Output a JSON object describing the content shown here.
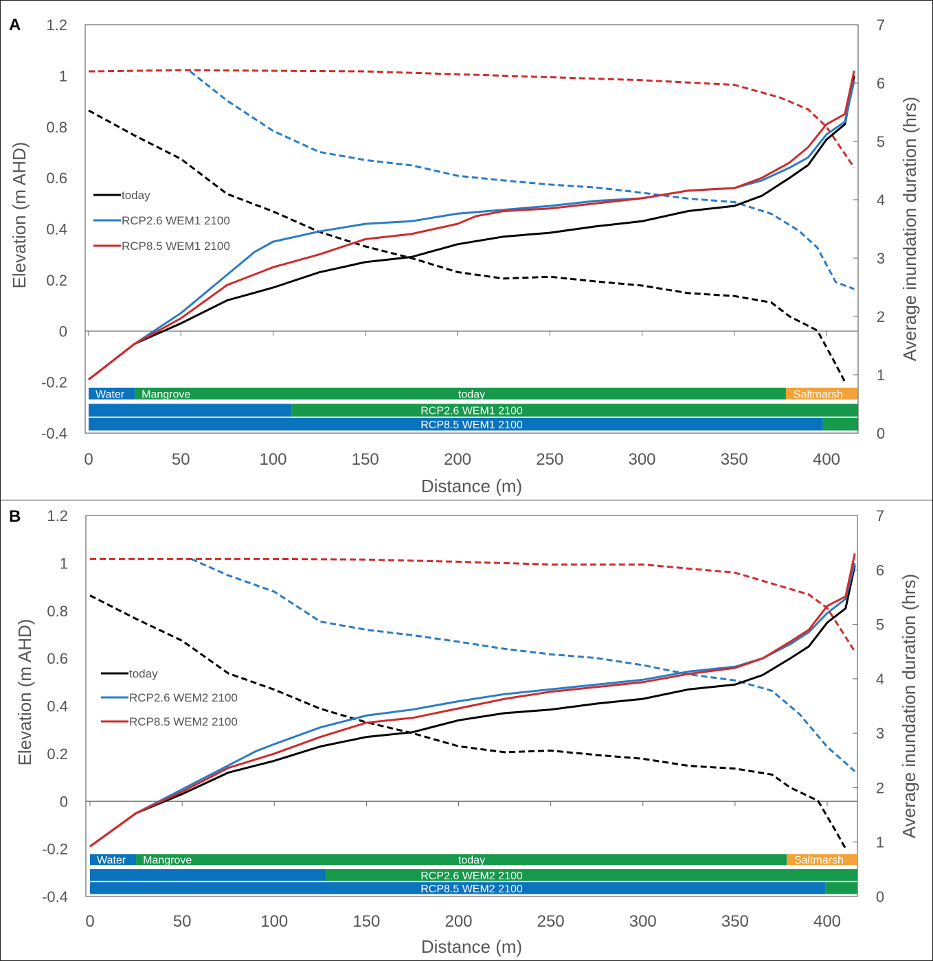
{
  "chart_data": [
    {
      "panel_label": "A",
      "type": "line",
      "xlabel": "Distance (m)",
      "ylabel": "Elevation (m AHD)",
      "y2label": "Average inundation duration (hrs)",
      "xlim": [
        0,
        417
      ],
      "ylim": [
        -0.4,
        1.2
      ],
      "y2lim": [
        0,
        7
      ],
      "xticks": [
        "0",
        "50",
        "100",
        "150",
        "200",
        "250",
        "300",
        "350",
        "400"
      ],
      "yticks": [
        "-0.4",
        "-0.2",
        "0",
        "0.2",
        "0.4",
        "0.6",
        "0.8",
        "1",
        "1.2"
      ],
      "y2ticks": [
        "0",
        "1",
        "2",
        "3",
        "4",
        "5",
        "6",
        "7"
      ],
      "legend": [
        "today",
        "RCP2.6 WEM1 2100",
        "RCP8.5 WEM1 2100"
      ],
      "legend_position": "left-middle",
      "colors": {
        "today": "#000000",
        "rcp26": "#2a7cc7",
        "rcp85": "#d12b2b",
        "water": "#0b72be",
        "mangrove": "#16994a",
        "saltmarsh": "#f4a238"
      },
      "elevation": [
        {
          "name": "today",
          "x": [
            0,
            25,
            50,
            75,
            100,
            125,
            150,
            175,
            200,
            225,
            250,
            275,
            300,
            325,
            350,
            365,
            380,
            390,
            400,
            410,
            415
          ],
          "y": [
            -0.19,
            -0.05,
            0.03,
            0.12,
            0.17,
            0.23,
            0.27,
            0.29,
            0.34,
            0.37,
            0.385,
            0.41,
            0.43,
            0.47,
            0.49,
            0.53,
            0.6,
            0.65,
            0.75,
            0.81,
            1.0
          ]
        },
        {
          "name": "RCP2.6 WEM1 2100",
          "x": [
            0,
            25,
            50,
            75,
            90,
            100,
            125,
            150,
            175,
            200,
            225,
            250,
            275,
            300,
            325,
            350,
            365,
            380,
            390,
            400,
            410,
            415
          ],
          "y": [
            -0.19,
            -0.05,
            0.07,
            0.22,
            0.31,
            0.35,
            0.39,
            0.42,
            0.43,
            0.46,
            0.475,
            0.49,
            0.51,
            0.52,
            0.55,
            0.56,
            0.59,
            0.64,
            0.68,
            0.77,
            0.82,
            0.98
          ]
        },
        {
          "name": "RCP8.5 WEM1 2100",
          "x": [
            0,
            25,
            50,
            75,
            100,
            125,
            150,
            175,
            200,
            210,
            225,
            250,
            275,
            300,
            325,
            350,
            365,
            380,
            390,
            400,
            410,
            415
          ],
          "y": [
            -0.19,
            -0.05,
            0.05,
            0.18,
            0.25,
            0.3,
            0.36,
            0.38,
            0.42,
            0.45,
            0.47,
            0.48,
            0.5,
            0.52,
            0.55,
            0.56,
            0.6,
            0.66,
            0.72,
            0.81,
            0.85,
            1.02
          ]
        }
      ],
      "inundation_hrs": [
        {
          "name": "today",
          "x": [
            0,
            25,
            50,
            75,
            100,
            125,
            150,
            175,
            200,
            225,
            250,
            275,
            300,
            325,
            350,
            370,
            380,
            395,
            405,
            410
          ],
          "y": [
            5.53,
            5.1,
            4.7,
            4.1,
            3.8,
            3.45,
            3.2,
            3.0,
            2.76,
            2.65,
            2.68,
            2.6,
            2.53,
            2.4,
            2.35,
            2.24,
            2.0,
            1.76,
            1.18,
            0.88
          ]
        },
        {
          "name": "RCP2.6 WEM1 2100",
          "x": [
            55,
            75,
            100,
            125,
            150,
            175,
            200,
            225,
            250,
            275,
            300,
            325,
            350,
            370,
            385,
            395,
            405,
            415
          ],
          "y": [
            6.2,
            5.7,
            5.18,
            4.82,
            4.68,
            4.59,
            4.41,
            4.33,
            4.26,
            4.21,
            4.12,
            4.02,
            3.96,
            3.76,
            3.47,
            3.18,
            2.59,
            2.47
          ]
        },
        {
          "name": "RCP8.5 WEM1 2100",
          "x": [
            0,
            50,
            100,
            150,
            200,
            250,
            300,
            350,
            375,
            390,
            400,
            415
          ],
          "y": [
            6.2,
            6.22,
            6.21,
            6.2,
            6.15,
            6.1,
            6.05,
            5.97,
            5.75,
            5.55,
            5.25,
            4.55
          ]
        }
      ],
      "habitat_bars": [
        {
          "label": "today",
          "segments": [
            {
              "type": "water",
              "label": "Water",
              "from": 0,
              "to": 25
            },
            {
              "type": "mangrove",
              "label": "Mangrove",
              "from": 25,
              "to": 378
            },
            {
              "type": "saltmarsh",
              "label": "Saltmarsh",
              "from": 378,
              "to": 417
            }
          ]
        },
        {
          "label": "RCP2.6 WEM1 2100",
          "segments": [
            {
              "type": "water",
              "from": 0,
              "to": 110
            },
            {
              "type": "mangrove",
              "from": 110,
              "to": 417
            }
          ]
        },
        {
          "label": "RCP8.5 WEM1 2100",
          "segments": [
            {
              "type": "water",
              "from": 0,
              "to": 398
            },
            {
              "type": "mangrove",
              "from": 398,
              "to": 417
            }
          ]
        }
      ]
    },
    {
      "panel_label": "B",
      "type": "line",
      "xlabel": "Distance (m)",
      "ylabel": "Elevation (m AHD)",
      "y2label": "Average inundation duration (hrs)",
      "xlim": [
        0,
        417
      ],
      "ylim": [
        -0.4,
        1.2
      ],
      "y2lim": [
        0,
        7
      ],
      "xticks": [
        "0",
        "50",
        "100",
        "150",
        "200",
        "250",
        "300",
        "350",
        "400"
      ],
      "yticks": [
        "-0.4",
        "-0.2",
        "0",
        "0.2",
        "0.4",
        "0.6",
        "0.8",
        "1",
        "1.2"
      ],
      "y2ticks": [
        "0",
        "1",
        "2",
        "3",
        "4",
        "5",
        "6",
        "7"
      ],
      "legend": [
        "today",
        "RCP2.6 WEM2 2100",
        "RCP8.5 WEM2 2100"
      ],
      "legend_position": "left-middle",
      "colors": {
        "today": "#000000",
        "rcp26": "#2a7cc7",
        "rcp85": "#d12b2b",
        "water": "#0b72be",
        "mangrove": "#16994a",
        "saltmarsh": "#f4a238"
      },
      "elevation": [
        {
          "name": "today",
          "x": [
            0,
            25,
            50,
            75,
            100,
            125,
            150,
            175,
            200,
            225,
            250,
            275,
            300,
            325,
            350,
            365,
            380,
            390,
            400,
            410,
            415
          ],
          "y": [
            -0.19,
            -0.05,
            0.03,
            0.12,
            0.17,
            0.23,
            0.27,
            0.29,
            0.34,
            0.37,
            0.385,
            0.41,
            0.43,
            0.47,
            0.49,
            0.53,
            0.6,
            0.65,
            0.75,
            0.81,
            0.99
          ]
        },
        {
          "name": "RCP2.6 WEM2 2100",
          "x": [
            0,
            25,
            50,
            75,
            90,
            100,
            125,
            150,
            175,
            200,
            225,
            250,
            275,
            300,
            325,
            350,
            365,
            380,
            390,
            400,
            410,
            415
          ],
          "y": [
            -0.19,
            -0.05,
            0.05,
            0.15,
            0.21,
            0.24,
            0.31,
            0.36,
            0.385,
            0.42,
            0.45,
            0.47,
            0.49,
            0.51,
            0.545,
            0.565,
            0.6,
            0.66,
            0.71,
            0.79,
            0.85,
            1.0
          ]
        },
        {
          "name": "RCP8.5 WEM2 2100",
          "x": [
            0,
            25,
            50,
            75,
            100,
            125,
            150,
            175,
            200,
            225,
            250,
            275,
            300,
            325,
            350,
            365,
            380,
            390,
            400,
            410,
            415
          ],
          "y": [
            -0.19,
            -0.05,
            0.04,
            0.14,
            0.2,
            0.27,
            0.33,
            0.35,
            0.39,
            0.43,
            0.46,
            0.48,
            0.5,
            0.535,
            0.56,
            0.6,
            0.67,
            0.72,
            0.82,
            0.86,
            1.04
          ]
        }
      ],
      "inundation_hrs": [
        {
          "name": "today",
          "x": [
            0,
            25,
            50,
            75,
            100,
            125,
            150,
            175,
            200,
            225,
            250,
            275,
            300,
            325,
            350,
            370,
            380,
            395,
            405,
            410
          ],
          "y": [
            5.53,
            5.1,
            4.7,
            4.1,
            3.8,
            3.45,
            3.2,
            3.0,
            2.76,
            2.65,
            2.68,
            2.6,
            2.53,
            2.4,
            2.35,
            2.24,
            2.0,
            1.76,
            1.18,
            0.88
          ]
        },
        {
          "name": "RCP2.6 WEM2 2100",
          "x": [
            55,
            75,
            100,
            125,
            150,
            175,
            200,
            225,
            250,
            275,
            300,
            325,
            350,
            370,
            385,
            400,
            415
          ],
          "y": [
            6.2,
            5.9,
            5.6,
            5.05,
            4.9,
            4.8,
            4.68,
            4.55,
            4.45,
            4.38,
            4.25,
            4.08,
            3.97,
            3.78,
            3.35,
            2.75,
            2.3
          ]
        },
        {
          "name": "RCP8.5 WEM2 2100",
          "x": [
            0,
            50,
            100,
            150,
            200,
            250,
            300,
            350,
            375,
            390,
            400,
            415
          ],
          "y": [
            6.2,
            6.2,
            6.2,
            6.19,
            6.15,
            6.1,
            6.1,
            5.95,
            5.7,
            5.55,
            5.3,
            4.5
          ]
        }
      ],
      "habitat_bars": [
        {
          "label": "today",
          "segments": [
            {
              "type": "water",
              "label": "Water",
              "from": 0,
              "to": 25
            },
            {
              "type": "mangrove",
              "label": "Mangrove",
              "from": 25,
              "to": 378
            },
            {
              "type": "saltmarsh",
              "label": "Saltmarsh",
              "from": 378,
              "to": 417
            }
          ]
        },
        {
          "label": "RCP2.6 WEM2 2100",
          "segments": [
            {
              "type": "water",
              "from": 0,
              "to": 128
            },
            {
              "type": "mangrove",
              "from": 128,
              "to": 417
            }
          ]
        },
        {
          "label": "RCP8.5 WEM2 2100",
          "segments": [
            {
              "type": "water",
              "from": 0,
              "to": 399
            },
            {
              "type": "mangrove",
              "from": 399,
              "to": 417
            }
          ]
        }
      ]
    }
  ]
}
